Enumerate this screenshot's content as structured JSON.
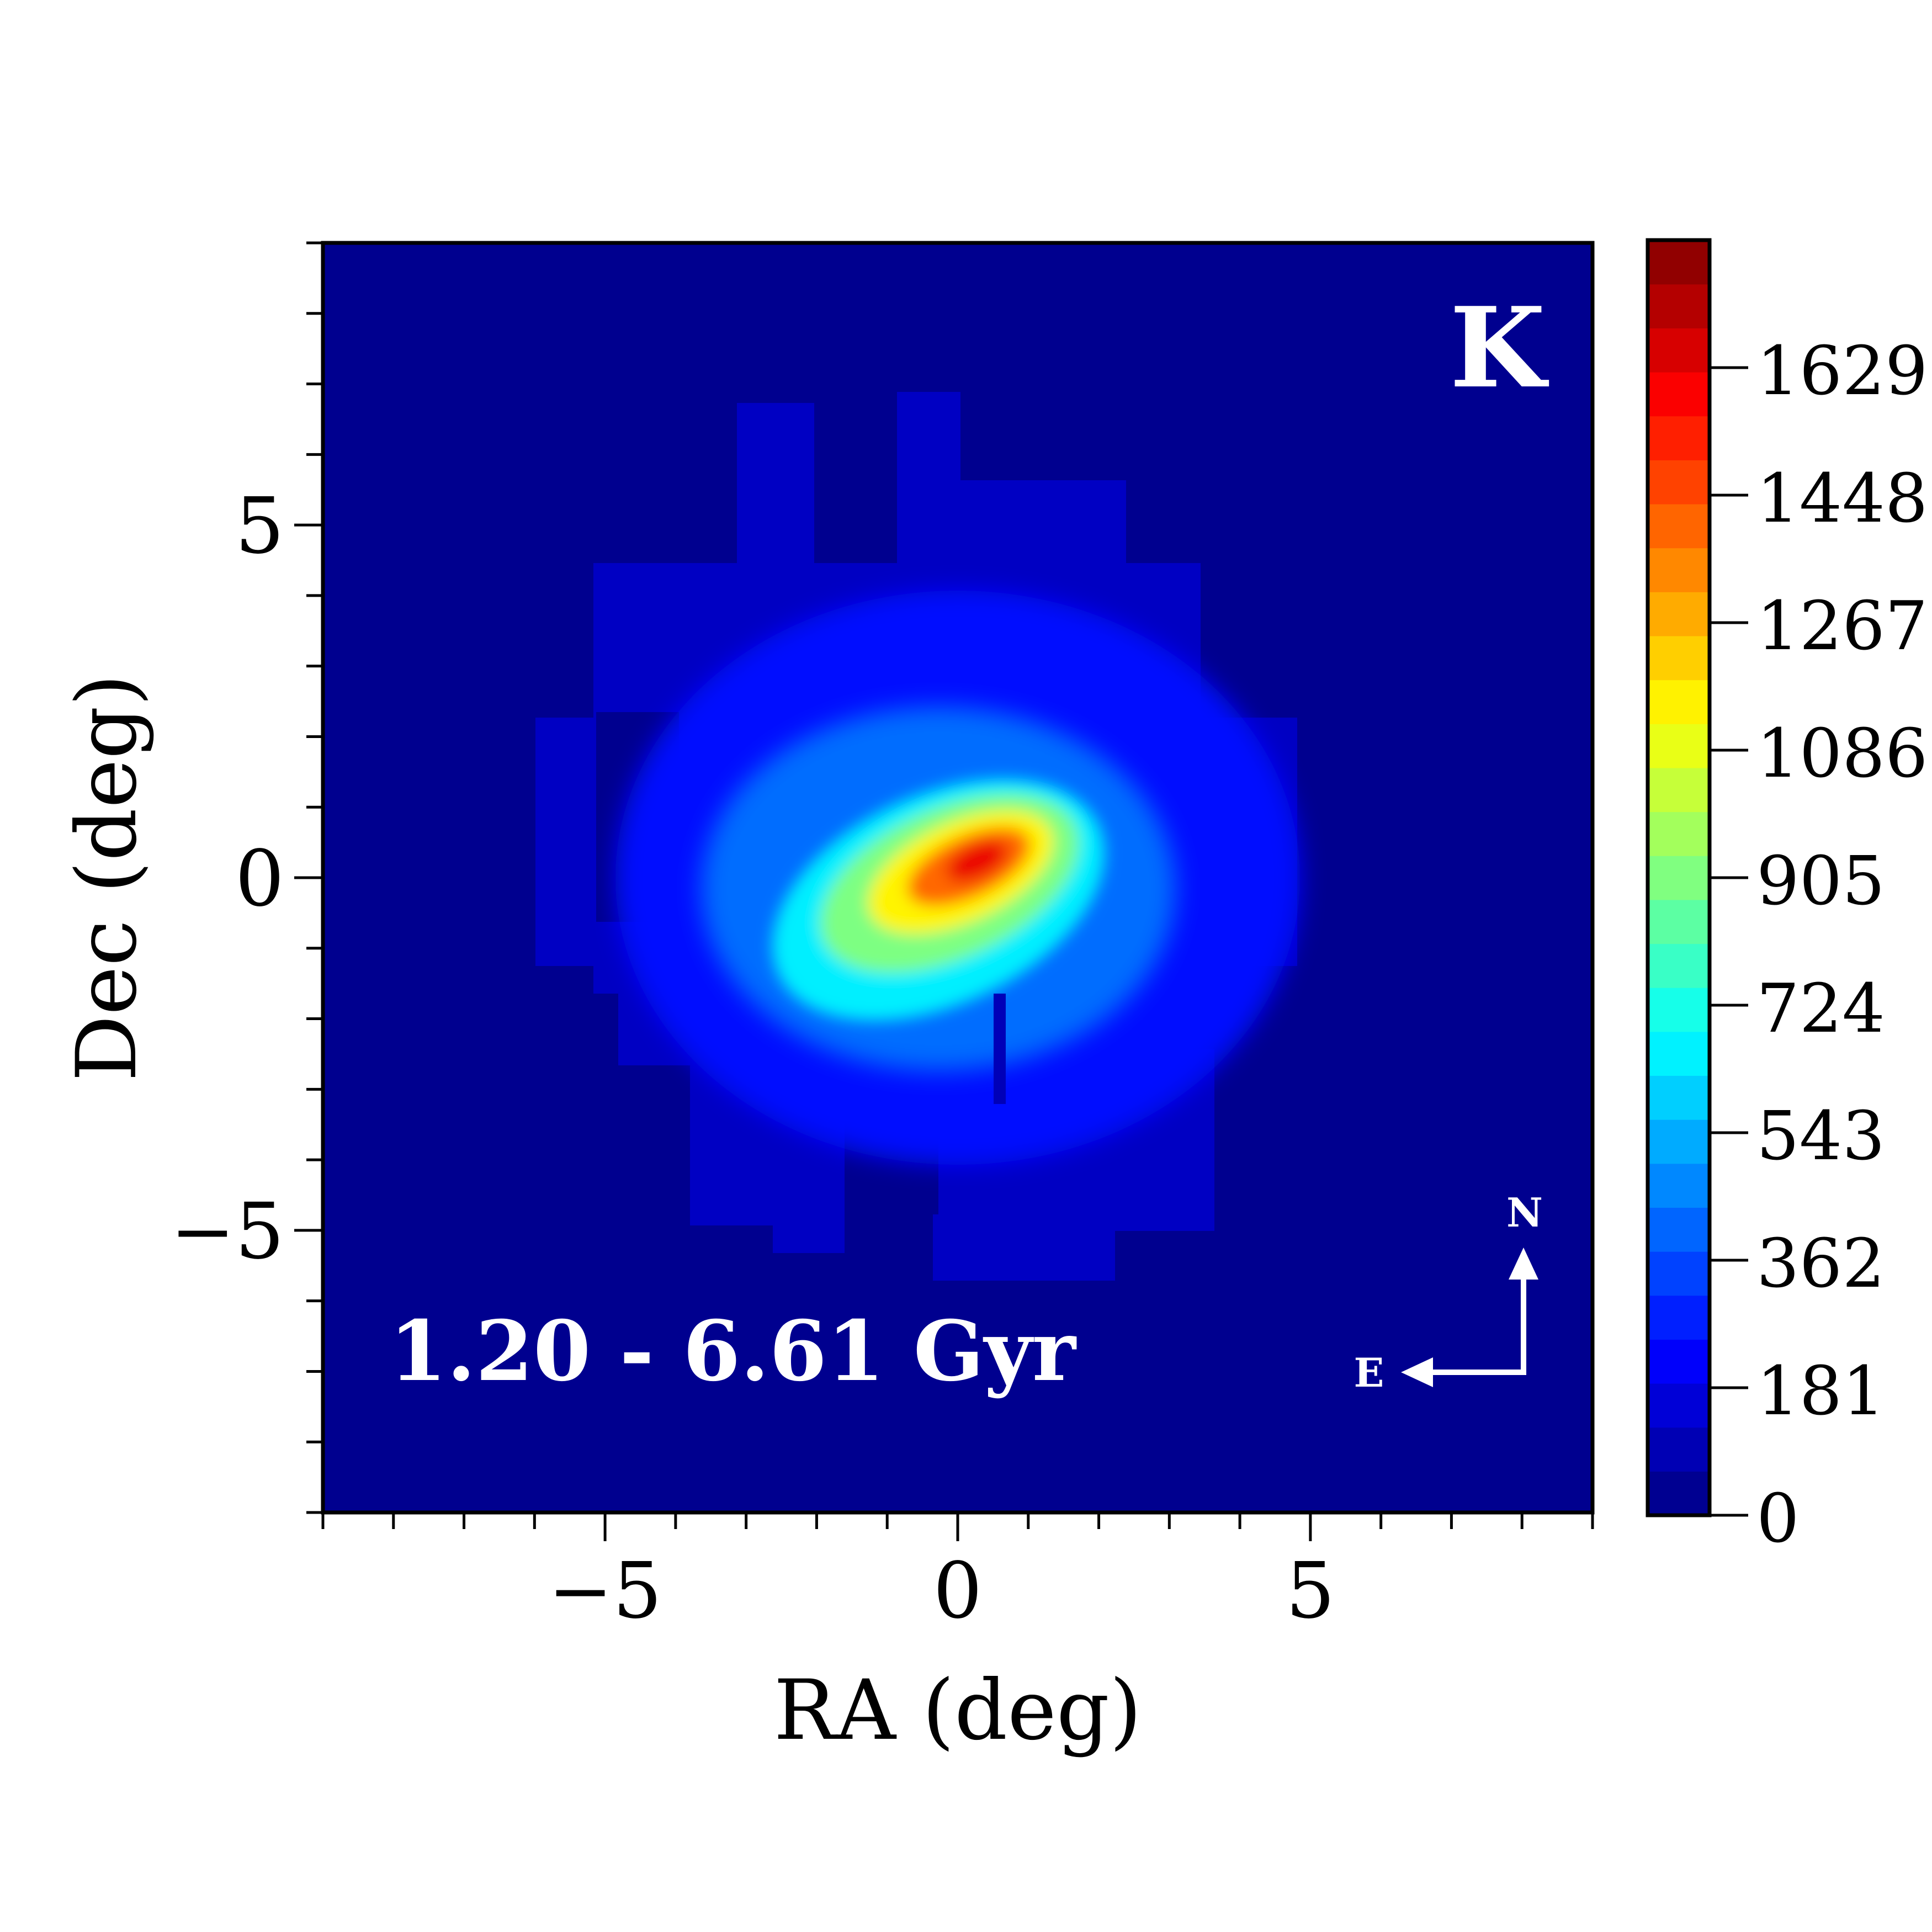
{
  "chart_data": {
    "type": "heatmap",
    "panel_label": "K",
    "annotation": "1.20 - 6.61 Gyr",
    "xlabel": "RA (deg)",
    "ylabel": "Dec (deg)",
    "xlim": [
      -9,
      9
    ],
    "ylim": [
      -9,
      9
    ],
    "x_ticks": [
      -5,
      0,
      5
    ],
    "y_ticks": [
      -5,
      0,
      5
    ],
    "x_tick_labels": [
      "−5",
      "0",
      "5"
    ],
    "y_tick_labels": [
      "−5",
      "0",
      "5"
    ],
    "colorbar": {
      "colormap": "jet",
      "min": 0,
      "max": 1810,
      "levels": 29,
      "tick_values": [
        0,
        181,
        362,
        543,
        724,
        905,
        1086,
        1267,
        1448,
        1629
      ],
      "tick_labels": [
        "0",
        "181",
        "362",
        "543",
        "724",
        "905",
        "1086",
        "1267",
        "1448",
        "1629"
      ]
    },
    "compass": {
      "north_label": "N",
      "east_label": "E"
    },
    "density_regions": [
      {
        "name": "outer-survey-footprint",
        "level": 120
      },
      {
        "name": "disk-envelope",
        "level": 250
      },
      {
        "name": "disk-middle",
        "level": 420
      },
      {
        "name": "bar-outer",
        "level": 650
      },
      {
        "name": "bar-inner",
        "level": 900
      },
      {
        "name": "bar-bright",
        "level": 1150
      },
      {
        "name": "bar-core",
        "level": 1400
      },
      {
        "name": "bar-peak",
        "level": 1620
      }
    ]
  }
}
